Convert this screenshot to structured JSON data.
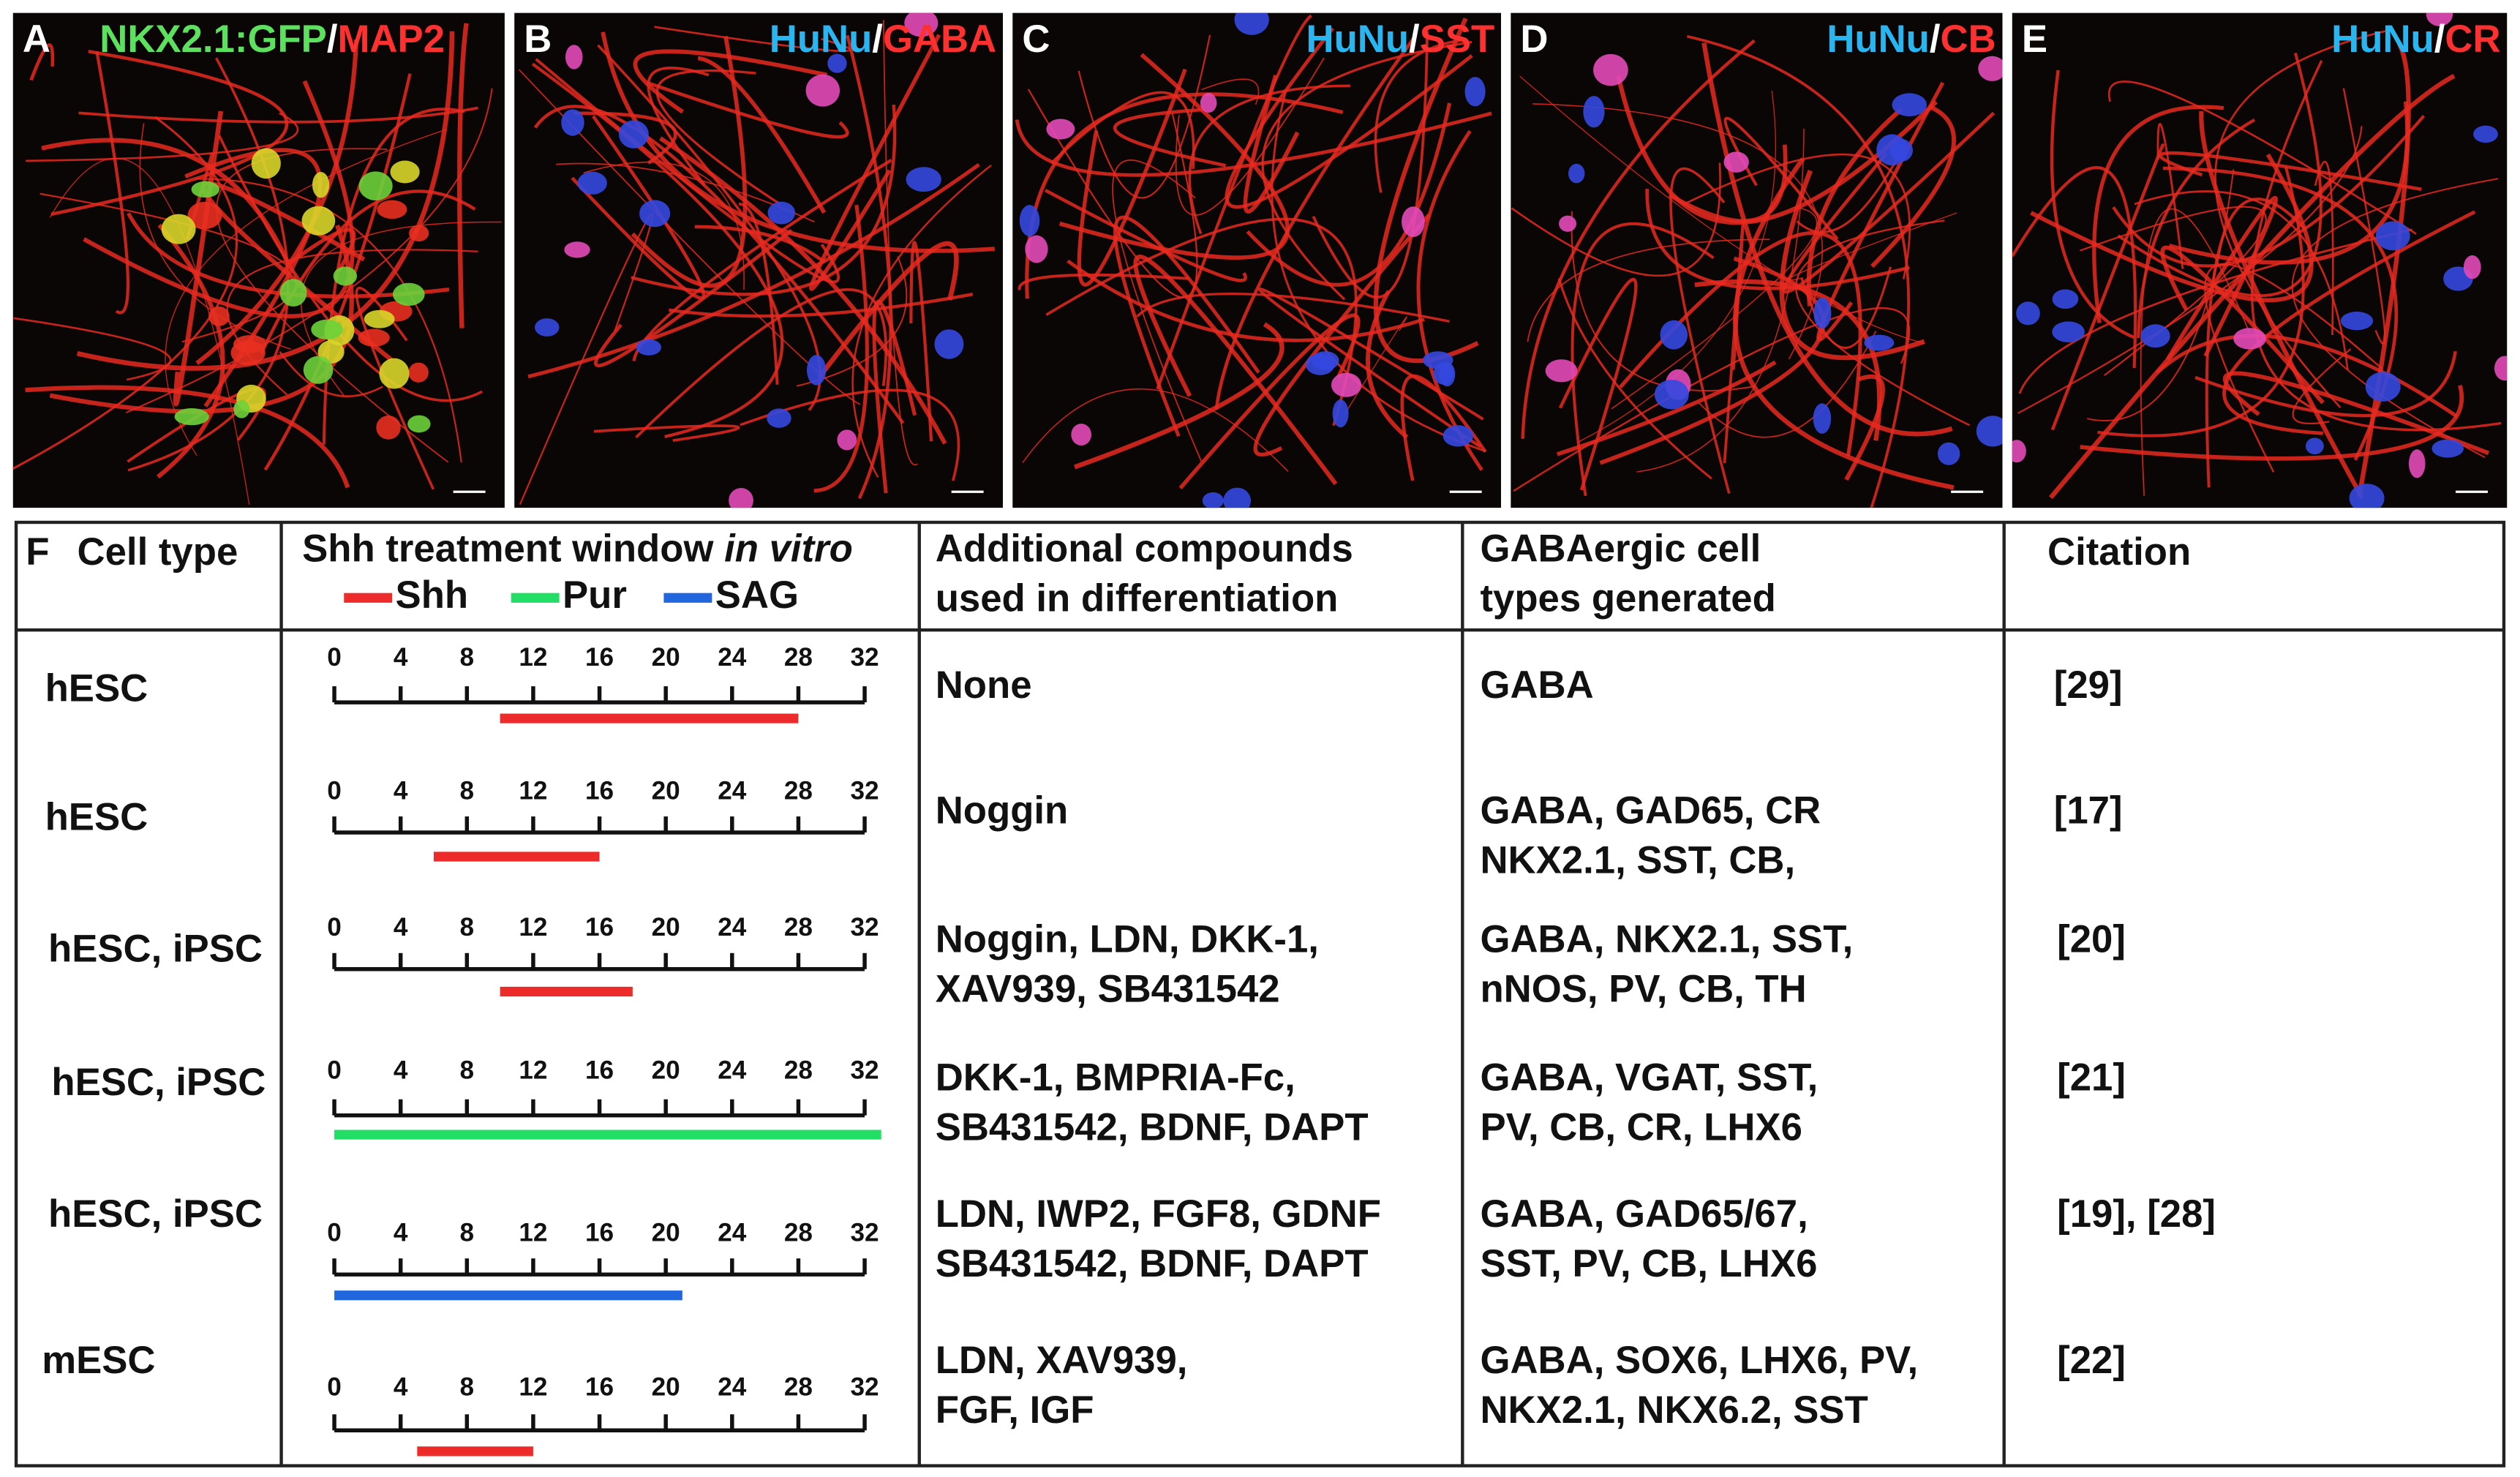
{
  "panels": [
    {
      "letter": "A",
      "labels": [
        {
          "text": "NKX2.1:GFP",
          "color": "#5de05d"
        },
        {
          "text": "/",
          "color": "#ffffff"
        },
        {
          "text": "MAP2",
          "color": "#ff3030"
        }
      ]
    },
    {
      "letter": "B",
      "labels": [
        {
          "text": "HuNu",
          "color": "#29b6f0"
        },
        {
          "text": "/",
          "color": "#ffffff"
        },
        {
          "text": "GABA",
          "color": "#ff3030"
        }
      ]
    },
    {
      "letter": "C",
      "labels": [
        {
          "text": "HuNu",
          "color": "#29b6f0"
        },
        {
          "text": "/",
          "color": "#ffffff"
        },
        {
          "text": "SST",
          "color": "#ff3030"
        }
      ]
    },
    {
      "letter": "D",
      "labels": [
        {
          "text": "HuNu",
          "color": "#29b6f0"
        },
        {
          "text": "/",
          "color": "#ffffff"
        },
        {
          "text": "CB",
          "color": "#ff3030"
        }
      ]
    },
    {
      "letter": "E",
      "labels": [
        {
          "text": "HuNu",
          "color": "#29b6f0"
        },
        {
          "text": "/",
          "color": "#ffffff"
        },
        {
          "text": "CR",
          "color": "#ff3030"
        }
      ]
    }
  ],
  "table": {
    "label": "F",
    "headers": {
      "cell_type": "Cell type",
      "window": [
        "Shh treatment window ",
        "in vitro"
      ],
      "compounds": [
        "Additional compounds",
        "used in differentiation"
      ],
      "generated": [
        "GABAergic cell",
        "types generated"
      ],
      "citation": "Citation"
    },
    "legend": [
      {
        "name": "Shh",
        "color": "#ee2b2b"
      },
      {
        "name": "Pur",
        "color": "#22dd66"
      },
      {
        "name": "SAG",
        "color": "#2266dd"
      }
    ],
    "ticks": [
      0,
      4,
      8,
      12,
      16,
      20,
      24,
      28,
      32
    ],
    "rows": [
      {
        "cell_type": "hESC",
        "window": {
          "treatment": 0,
          "start": 10,
          "end": 28
        },
        "compounds": [
          "None"
        ],
        "generated": [
          "GABA"
        ],
        "citation": "[29]"
      },
      {
        "cell_type": "hESC",
        "window": {
          "treatment": 0,
          "start": 6,
          "end": 16
        },
        "compounds": [
          "Noggin"
        ],
        "generated": [
          "GABA, GAD65, CR",
          "NKX2.1, SST, CB,"
        ],
        "citation": "[17]"
      },
      {
        "cell_type": "hESC, iPSC",
        "window": {
          "treatment": 0,
          "start": 10,
          "end": 18
        },
        "compounds": [
          "Noggin, LDN, DKK-1,",
          "XAV939, SB431542"
        ],
        "generated": [
          "GABA, NKX2.1, SST,",
          "nNOS, PV, CB, TH"
        ],
        "citation": "[20]"
      },
      {
        "cell_type": "hESC, iPSC",
        "window": {
          "treatment": 1,
          "start": 0,
          "end": 33
        },
        "compounds": [
          "DKK-1, BMPRIA-Fc,",
          "SB431542, BDNF, DAPT"
        ],
        "generated": [
          "GABA, VGAT, SST,",
          "PV, CB, CR, LHX6"
        ],
        "citation": "[21]"
      },
      {
        "cell_type": "hESC, iPSC",
        "window": {
          "treatment": 2,
          "start": 0,
          "end": 21
        },
        "compounds": [
          "LDN, IWP2, FGF8, GDNF",
          "SB431542, BDNF, DAPT"
        ],
        "generated": [
          "GABA, GAD65/67,",
          "SST, PV, CB, LHX6"
        ],
        "citation": "[19], [28]"
      },
      {
        "cell_type": "mESC",
        "window": {
          "treatment": 0,
          "start": 5,
          "end": 12
        },
        "compounds": [
          "LDN, XAV939,",
          "FGF, IGF"
        ],
        "generated": [
          "GABA, SOX6, LHX6, PV,",
          "NKX2.1, NKX6.2, SST"
        ],
        "citation": "[22]"
      }
    ]
  }
}
